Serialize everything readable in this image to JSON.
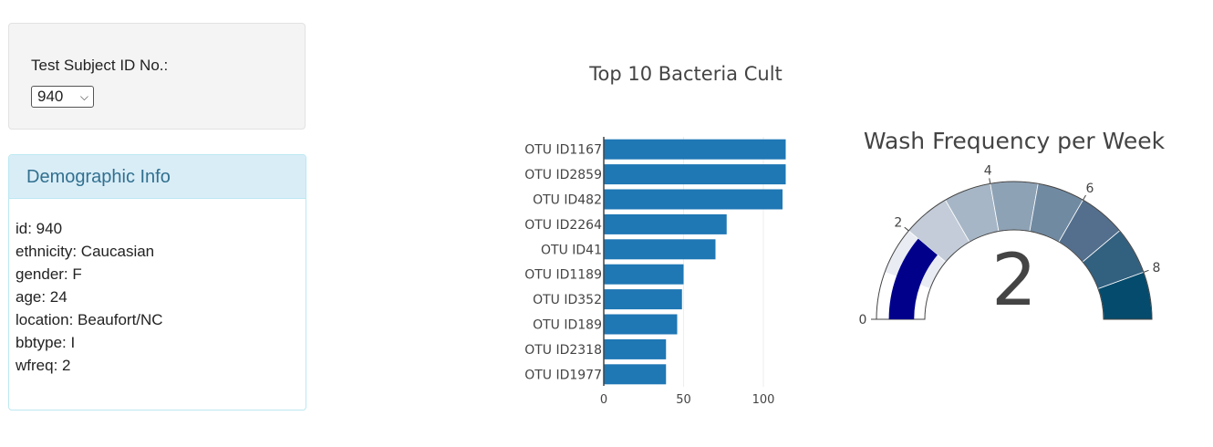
{
  "selector": {
    "label": "Test Subject ID No.:",
    "selected": "940"
  },
  "demographic": {
    "heading": "Demographic Info",
    "lines": [
      "id: 940",
      "ethnicity: Caucasian",
      "gender: F",
      "age: 24",
      "location: Beaufort/NC",
      "bbtype: I",
      "wfreq: 2"
    ]
  },
  "colors": {
    "bar": "#1f77b4",
    "needle": "#00008b"
  },
  "bar_chart": {
    "title": "Top 10 Bacteria Cult",
    "x_ticks": [
      "0",
      "50",
      "100"
    ]
  },
  "gauge": {
    "title": "Wash Frequency per Week",
    "value_text": "2",
    "tick_labels": [
      "0",
      "2",
      "4",
      "6",
      "8"
    ],
    "band_colors": [
      "#ffffff",
      "#e9ecf3",
      "#c3ccd8",
      "#a6b6c6",
      "#8ea2b5",
      "#708aa2",
      "#536f8d",
      "#32607f",
      "#044b6d"
    ]
  },
  "chart_data": [
    {
      "type": "bar",
      "orientation": "horizontal",
      "title": "Top 10 Bacteria Cult",
      "categories": [
        "OTU ID1167",
        "OTU ID2859",
        "OTU ID482",
        "OTU ID2264",
        "OTU ID41",
        "OTU ID1189",
        "OTU ID352",
        "OTU ID189",
        "OTU ID2318",
        "OTU ID1977"
      ],
      "values": [
        114,
        114,
        112,
        77,
        70,
        50,
        49,
        46,
        39,
        39
      ],
      "xlim": [
        0,
        114
      ],
      "xticks": [
        0,
        50,
        100
      ],
      "grid": true
    },
    {
      "type": "gauge",
      "title": "Wash Frequency per Week",
      "value": 2,
      "range": [
        0,
        9
      ],
      "ticks": [
        0,
        2,
        4,
        6,
        8
      ]
    }
  ]
}
